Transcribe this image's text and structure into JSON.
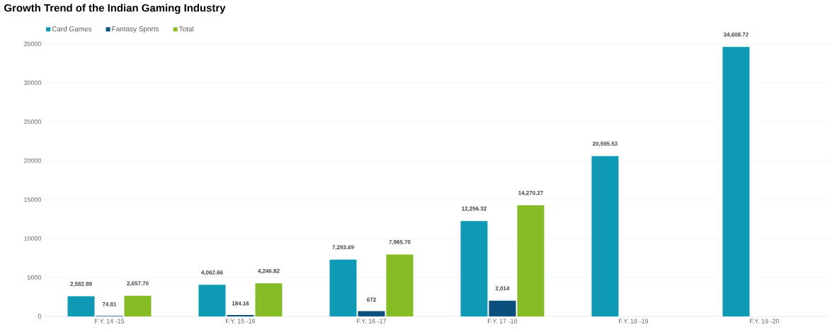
{
  "chart_data": {
    "type": "bar",
    "title": "Growth Trend of the Indian Gaming Industry",
    "categories": [
      "F.Y. 14 -15",
      "F.Y. 15 -16",
      "F.Y. 16 -17",
      "F.Y. 17 -18",
      "F.Y. 18 -19",
      "F.Y. 19 -20"
    ],
    "series": [
      {
        "name": "Card Games",
        "color": "#0e9ab4",
        "values": [
          2582.89,
          4062.66,
          7293.69,
          12256.32,
          20595.53,
          34608.72
        ],
        "value_labels": [
          "2,582.89",
          "4,062.66",
          "7,293.69",
          "12,256.32",
          "20,595.53",
          "34,608.72"
        ]
      },
      {
        "name": "Fantasy Sports",
        "color": "#0b4f7c",
        "values": [
          74.81,
          184.16,
          672,
          2014,
          null,
          null
        ],
        "value_labels": [
          "74.81",
          "184.16",
          "672",
          "2,014",
          null,
          null
        ]
      },
      {
        "name": "Total",
        "color": "#86bc25",
        "values": [
          2657.7,
          4246.82,
          7965.7,
          14270.27,
          null,
          null
        ],
        "value_labels": [
          "2,657.70",
          "4,246.82",
          "7,965.70",
          "14,270.27",
          null,
          null
        ]
      }
    ],
    "ylim": [
      0,
      35000
    ],
    "yticks": [
      0,
      5000,
      10000,
      15000,
      20000,
      25000,
      30000,
      35000
    ],
    "grid": "y",
    "legend": "top left"
  }
}
